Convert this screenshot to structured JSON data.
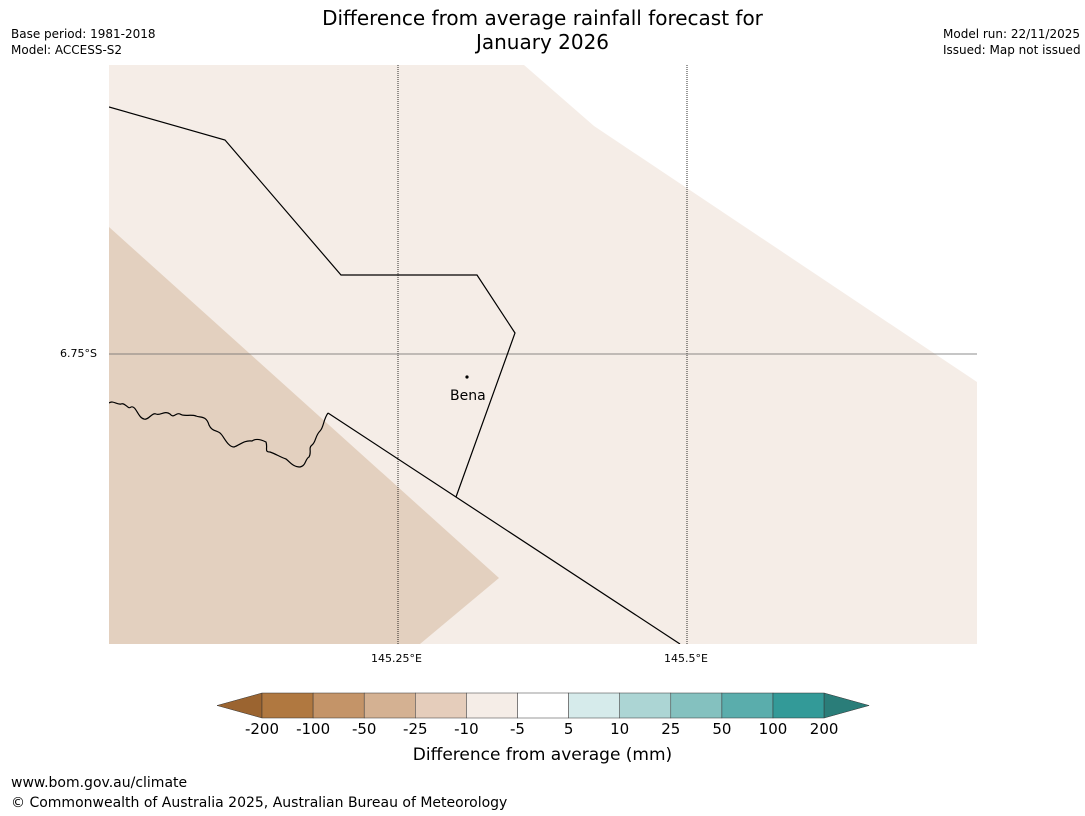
{
  "title": {
    "line1": "Difference from average rainfall forecast for",
    "line2": "January 2026"
  },
  "meta_left": {
    "base_period": "Base period: 1981-2018",
    "model": "Model: ACCESS-S2"
  },
  "meta_right": {
    "model_run": "Model run: 22/11/2025",
    "issued": "Issued: Map not issued"
  },
  "map": {
    "latitude_label": "6.75°S",
    "longitude_labels": [
      "145.25°E",
      "145.5°E"
    ],
    "place": "Bena",
    "colors": {
      "light_fill": "#f5ede7",
      "brown_fill": "#e3d0bf",
      "white_fill": "#ffffff"
    }
  },
  "colorbar": {
    "ticks": [
      "-200",
      "-100",
      "-50",
      "-25",
      "-10",
      "-5",
      "5",
      "10",
      "25",
      "50",
      "100",
      "200"
    ],
    "colors": [
      "#9b6430",
      "#b07840",
      "#c49468",
      "#d4b192",
      "#e5cdbb",
      "#f5ede7",
      "#ffffff",
      "#d6ebeb",
      "#acd5d4",
      "#84c1bf",
      "#5aadac",
      "#339a98",
      "#2a7d79"
    ],
    "label": "Difference from average (mm)"
  },
  "footer": {
    "url": "www.bom.gov.au/climate",
    "copyright": "© Commonwealth of Australia 2025, Australian Bureau of Meteorology"
  }
}
